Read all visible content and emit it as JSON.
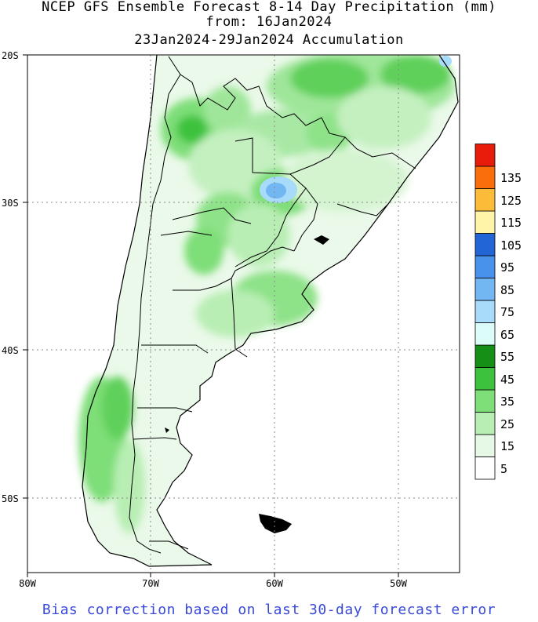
{
  "title": {
    "line1": "NCEP GFS Ensemble Forecast 8-14 Day Precipitation (mm)",
    "line2": "from: 16Jan2024",
    "line3": "23Jan2024-29Jan2024 Accumulation"
  },
  "lat_labels": [
    "20S",
    "30S",
    "40S",
    "50S"
  ],
  "lon_labels": [
    "80W",
    "70W",
    "60W",
    "50W"
  ],
  "legend": {
    "bins": [
      {
        "label": "5",
        "color": "#ffffff"
      },
      {
        "label": "15",
        "color": "#e6f8e6"
      },
      {
        "label": "25",
        "color": "#b8eeb4"
      },
      {
        "label": "35",
        "color": "#7ede78"
      },
      {
        "label": "45",
        "color": "#3cc23c"
      },
      {
        "label": "55",
        "color": "#168f16"
      },
      {
        "label": "65",
        "color": "#dcfcfa"
      },
      {
        "label": "75",
        "color": "#a8dafa"
      },
      {
        "label": "85",
        "color": "#72b6f2"
      },
      {
        "label": "95",
        "color": "#4892ec"
      },
      {
        "label": "105",
        "color": "#2266d6"
      },
      {
        "label": "115",
        "color": "#fff4a8"
      },
      {
        "label": "125",
        "color": "#fcbc3a"
      },
      {
        "label": "135",
        "color": "#fa6e0c"
      },
      {
        "label": "",
        "color": "#e81c0a"
      }
    ]
  },
  "footer": "Bias correction based on last 30-day forecast error"
}
